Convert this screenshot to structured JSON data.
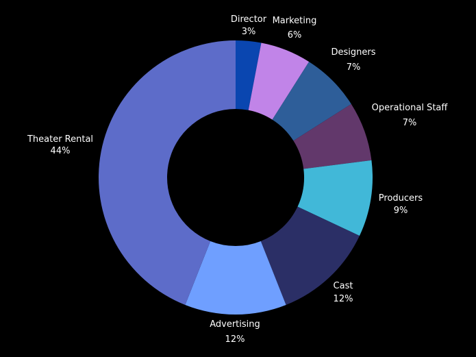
{
  "chart_data": {
    "type": "pie",
    "donut": true,
    "title": "",
    "slices": [
      {
        "label": "Director",
        "value": 3,
        "display": "3%",
        "color": "#0a46b0"
      },
      {
        "label": "Marketing",
        "value": 6,
        "display": "6%",
        "color": "#c184e8"
      },
      {
        "label": "Designers",
        "value": 7,
        "display": "7%",
        "color": "#2e5e99"
      },
      {
        "label": "Operational Staff",
        "value": 7,
        "display": "7%",
        "color": "#62386b"
      },
      {
        "label": "Producers",
        "value": 9,
        "display": "9%",
        "color": "#41b8d8"
      },
      {
        "label": "Cast",
        "value": 12,
        "display": "12%",
        "color": "#2b2f66"
      },
      {
        "label": "Advertising",
        "value": 12,
        "display": "12%",
        "color": "#6f9fff"
      },
      {
        "label": "Theater Rental",
        "value": 44,
        "display": "44%",
        "color": "#5d6cc9"
      }
    ],
    "legend": "none",
    "background": "#000000"
  }
}
